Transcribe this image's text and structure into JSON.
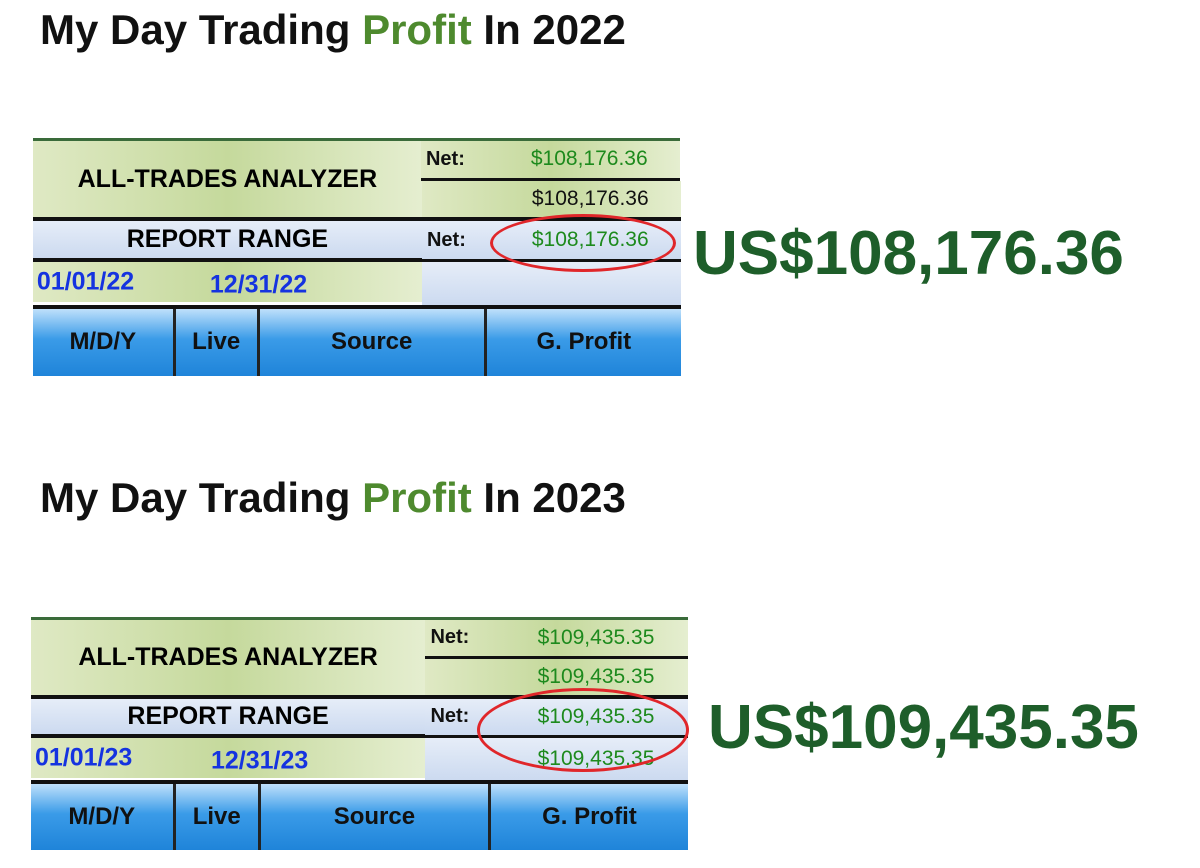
{
  "sections": [
    {
      "title_pre": "My Day Trading ",
      "title_hl": "Profit",
      "title_post": " In 2022",
      "analyzer": "ALL-TRADES ANALYZER",
      "net_label": "Net:",
      "net1": "$108,176.36",
      "net2": "$108,176.36",
      "report_range": "REPORT  RANGE",
      "net3": "$108,176.36",
      "net4": "",
      "date_from": "01/01/22",
      "date_to": "12/31/22",
      "columns": [
        "M/D/Y",
        "Live",
        "Source",
        "G. Profit"
      ],
      "highlight": "US$108,176.36"
    },
    {
      "title_pre": "My Day Trading ",
      "title_hl": "Profit",
      "title_post": " In 2023",
      "analyzer": "ALL-TRADES ANALYZER",
      "net_label": "Net:",
      "net1": "$109,435.35",
      "net2": "$109,435.35",
      "report_range": "REPORT  RANGE",
      "net3": "$109,435.35",
      "net4": "$109,435.35",
      "date_from": "01/01/23",
      "date_to": "12/31/23",
      "columns": [
        "M/D/Y",
        "Live",
        "Source",
        "G. Profit"
      ],
      "highlight": "US$109,435.35"
    }
  ],
  "colors": {
    "profit_green": "#4e8a2e",
    "highlight_green": "#1e5e2a",
    "value_green": "#1d8a1d",
    "date_blue": "#1533e0",
    "circle_red": "#e0262a"
  }
}
